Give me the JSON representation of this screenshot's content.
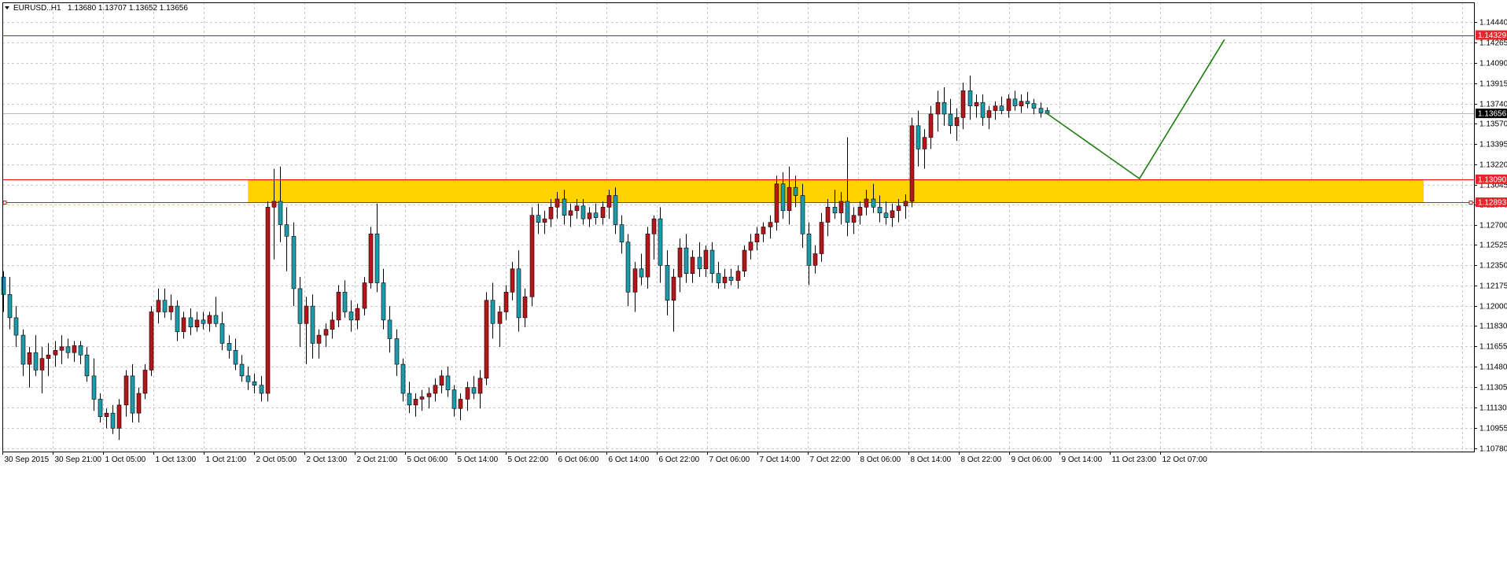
{
  "header": {
    "symbol": "EURUSD..H1",
    "ohlc": "1.13680 1.13707 1.13652 1.13656"
  },
  "colors": {
    "background": "#ffffff",
    "grid": "#c8c8c8",
    "bull": "#b5161b",
    "bear": "#1d9bab",
    "wick": "#000000",
    "zone": "#ffd200",
    "level_line": "#ff0000",
    "level_tag": "#e8252b",
    "current_tag": "#000000",
    "projection": "#1e7d12",
    "axis": "#000000"
  },
  "chart_data": {
    "type": "candlestick",
    "title": "EURUSD..H1",
    "ylim": [
      1.1075,
      1.1461
    ],
    "y_ticks": [
      "1.14440",
      "1.14265",
      "1.14090",
      "1.13915",
      "1.13740",
      "1.13570",
      "1.13395",
      "1.13220",
      "1.13045",
      "1.12870",
      "1.12700",
      "1.12525",
      "1.12350",
      "1.12175",
      "1.12000",
      "1.11830",
      "1.11655",
      "1.11480",
      "1.11305",
      "1.11130",
      "1.10955",
      "1.10780"
    ],
    "x_ticks": [
      "30 Sep 2015",
      "30 Sep 21:00",
      "1 Oct 05:00",
      "1 Oct 13:00",
      "1 Oct 21:00",
      "2 Oct 05:00",
      "2 Oct 13:00",
      "2 Oct 21:00",
      "5 Oct 06:00",
      "5 Oct 14:00",
      "5 Oct 22:00",
      "6 Oct 06:00",
      "6 Oct 14:00",
      "6 Oct 22:00",
      "7 Oct 06:00",
      "7 Oct 14:00",
      "7 Oct 22:00",
      "8 Oct 06:00",
      "8 Oct 14:00",
      "8 Oct 22:00",
      "9 Oct 06:00",
      "9 Oct 14:00",
      "11 Oct 23:00",
      "12 Oct 07:00"
    ],
    "levels": [
      {
        "label": "1.14329",
        "value": 1.14329
      },
      {
        "label": "1.13090",
        "value": 1.1309
      },
      {
        "label": "1.12893",
        "value": 1.12893
      }
    ],
    "current_price": {
      "label": "1.13656",
      "value": 1.13656
    },
    "zone": {
      "low": 1.12893,
      "high": 1.1309
    },
    "candles": [
      [
        1.1225,
        1.123,
        1.1195,
        1.121
      ],
      [
        1.121,
        1.1225,
        1.118,
        1.119
      ],
      [
        1.119,
        1.12,
        1.1165,
        1.1175
      ],
      [
        1.1175,
        1.118,
        1.114,
        1.115
      ],
      [
        1.115,
        1.1165,
        1.113,
        1.116
      ],
      [
        1.116,
        1.1175,
        1.114,
        1.1145
      ],
      [
        1.1145,
        1.1165,
        1.1125,
        1.1155
      ],
      [
        1.1155,
        1.1168,
        1.114,
        1.1158
      ],
      [
        1.1158,
        1.117,
        1.1148,
        1.1162
      ],
      [
        1.1162,
        1.1175,
        1.115,
        1.1165
      ],
      [
        1.1165,
        1.1172,
        1.1155,
        1.116
      ],
      [
        1.116,
        1.117,
        1.1152,
        1.1166
      ],
      [
        1.1166,
        1.117,
        1.115,
        1.1158
      ],
      [
        1.1158,
        1.1165,
        1.1135,
        1.114
      ],
      [
        1.114,
        1.1155,
        1.111,
        1.112
      ],
      [
        1.112,
        1.1125,
        1.11,
        1.1105
      ],
      [
        1.1105,
        1.1112,
        1.1095,
        1.1108
      ],
      [
        1.1108,
        1.1115,
        1.109,
        1.1095
      ],
      [
        1.1095,
        1.112,
        1.1085,
        1.1115
      ],
      [
        1.1115,
        1.1145,
        1.1105,
        1.114
      ],
      [
        1.114,
        1.115,
        1.11,
        1.1108
      ],
      [
        1.1108,
        1.113,
        1.11,
        1.1125
      ],
      [
        1.1125,
        1.115,
        1.112,
        1.1145
      ],
      [
        1.1145,
        1.12,
        1.114,
        1.1195
      ],
      [
        1.1195,
        1.1215,
        1.1185,
        1.1205
      ],
      [
        1.1205,
        1.1215,
        1.119,
        1.1195
      ],
      [
        1.1195,
        1.121,
        1.1188,
        1.12
      ],
      [
        1.12,
        1.1205,
        1.117,
        1.1178
      ],
      [
        1.1178,
        1.1195,
        1.1172,
        1.119
      ],
      [
        1.119,
        1.1198,
        1.1175,
        1.1182
      ],
      [
        1.1182,
        1.1195,
        1.1178,
        1.1188
      ],
      [
        1.1188,
        1.1195,
        1.118,
        1.1185
      ],
      [
        1.1185,
        1.1195,
        1.1178,
        1.1192
      ],
      [
        1.1192,
        1.1208,
        1.1182,
        1.1185
      ],
      [
        1.1185,
        1.1195,
        1.1162,
        1.1168
      ],
      [
        1.1168,
        1.1175,
        1.1155,
        1.1162
      ],
      [
        1.1162,
        1.1172,
        1.1145,
        1.115
      ],
      [
        1.115,
        1.1158,
        1.1135,
        1.114
      ],
      [
        1.114,
        1.1148,
        1.1128,
        1.1135
      ],
      [
        1.1135,
        1.1142,
        1.1125,
        1.1132
      ],
      [
        1.1132,
        1.114,
        1.1118,
        1.1125
      ],
      [
        1.1125,
        1.129,
        1.1118,
        1.1285
      ],
      [
        1.1285,
        1.1318,
        1.124,
        1.129
      ],
      [
        1.129,
        1.132,
        1.1255,
        1.127
      ],
      [
        1.127,
        1.1285,
        1.123,
        1.126
      ],
      [
        1.126,
        1.1272,
        1.12,
        1.1215
      ],
      [
        1.1215,
        1.1225,
        1.1165,
        1.1185
      ],
      [
        1.1185,
        1.1208,
        1.115,
        1.12
      ],
      [
        1.12,
        1.121,
        1.1155,
        1.1168
      ],
      [
        1.1168,
        1.118,
        1.1155,
        1.1175
      ],
      [
        1.1175,
        1.1185,
        1.1165,
        1.118
      ],
      [
        1.118,
        1.1195,
        1.1172,
        1.1188
      ],
      [
        1.1188,
        1.1218,
        1.1182,
        1.1212
      ],
      [
        1.1212,
        1.1222,
        1.119,
        1.1195
      ],
      [
        1.1195,
        1.1205,
        1.1178,
        1.1188
      ],
      [
        1.1188,
        1.1202,
        1.118,
        1.1198
      ],
      [
        1.1198,
        1.1225,
        1.1192,
        1.122
      ],
      [
        1.122,
        1.1268,
        1.1215,
        1.1262
      ],
      [
        1.1262,
        1.1288,
        1.1212,
        1.122
      ],
      [
        1.122,
        1.1232,
        1.118,
        1.1188
      ],
      [
        1.1188,
        1.12,
        1.116,
        1.1172
      ],
      [
        1.1172,
        1.118,
        1.114,
        1.115
      ],
      [
        1.115,
        1.1155,
        1.1118,
        1.1125
      ],
      [
        1.1125,
        1.1135,
        1.1108,
        1.1115
      ],
      [
        1.1115,
        1.1125,
        1.1105,
        1.112
      ],
      [
        1.112,
        1.1128,
        1.111,
        1.1122
      ],
      [
        1.1122,
        1.113,
        1.1112,
        1.1125
      ],
      [
        1.1125,
        1.1138,
        1.1118,
        1.1132
      ],
      [
        1.1132,
        1.1145,
        1.1125,
        1.114
      ],
      [
        1.114,
        1.1148,
        1.1122,
        1.1128
      ],
      [
        1.1128,
        1.1132,
        1.1105,
        1.1112
      ],
      [
        1.1112,
        1.1125,
        1.1102,
        1.112
      ],
      [
        1.112,
        1.1135,
        1.111,
        1.113
      ],
      [
        1.113,
        1.114,
        1.112,
        1.1125
      ],
      [
        1.1125,
        1.1145,
        1.1112,
        1.1138
      ],
      [
        1.1138,
        1.1212,
        1.1132,
        1.1205
      ],
      [
        1.1205,
        1.122,
        1.1172,
        1.1185
      ],
      [
        1.1185,
        1.12,
        1.1165,
        1.1195
      ],
      [
        1.1195,
        1.1218,
        1.1188,
        1.1212
      ],
      [
        1.1212,
        1.1238,
        1.1205,
        1.1232
      ],
      [
        1.1232,
        1.1248,
        1.1178,
        1.119
      ],
      [
        1.119,
        1.1215,
        1.1182,
        1.1208
      ],
      [
        1.1208,
        1.1285,
        1.12,
        1.1278
      ],
      [
        1.1278,
        1.1288,
        1.1262,
        1.1272
      ],
      [
        1.1272,
        1.1282,
        1.1262,
        1.1275
      ],
      [
        1.1275,
        1.1292,
        1.1268,
        1.1285
      ],
      [
        1.1285,
        1.1298,
        1.1275,
        1.1292
      ],
      [
        1.1292,
        1.13,
        1.127,
        1.1278
      ],
      [
        1.1278,
        1.1288,
        1.1268,
        1.1282
      ],
      [
        1.1282,
        1.1292,
        1.1275,
        1.1286
      ],
      [
        1.1286,
        1.1292,
        1.127,
        1.1275
      ],
      [
        1.1275,
        1.1285,
        1.1268,
        1.128
      ],
      [
        1.128,
        1.1288,
        1.127,
        1.1276
      ],
      [
        1.1276,
        1.129,
        1.127,
        1.1285
      ],
      [
        1.1285,
        1.13,
        1.1275,
        1.1295
      ],
      [
        1.1295,
        1.1302,
        1.1262,
        1.127
      ],
      [
        1.127,
        1.1278,
        1.1245,
        1.1255
      ],
      [
        1.1255,
        1.1262,
        1.12,
        1.1212
      ],
      [
        1.1212,
        1.1238,
        1.1195,
        1.1232
      ],
      [
        1.1232,
        1.1245,
        1.1218,
        1.1225
      ],
      [
        1.1225,
        1.1268,
        1.1215,
        1.1262
      ],
      [
        1.1262,
        1.1278,
        1.124,
        1.1275
      ],
      [
        1.1275,
        1.1285,
        1.122,
        1.1235
      ],
      [
        1.1235,
        1.1248,
        1.1192,
        1.1205
      ],
      [
        1.1205,
        1.1232,
        1.1178,
        1.1225
      ],
      [
        1.1225,
        1.1258,
        1.1212,
        1.125
      ],
      [
        1.125,
        1.1262,
        1.122,
        1.1228
      ],
      [
        1.1228,
        1.1248,
        1.122,
        1.1242
      ],
      [
        1.1242,
        1.1255,
        1.1225,
        1.1232
      ],
      [
        1.1232,
        1.1252,
        1.1225,
        1.1248
      ],
      [
        1.1248,
        1.1255,
        1.122,
        1.1228
      ],
      [
        1.1228,
        1.1238,
        1.1215,
        1.122
      ],
      [
        1.122,
        1.1232,
        1.1215,
        1.1225
      ],
      [
        1.1225,
        1.1232,
        1.1218,
        1.1222
      ],
      [
        1.1222,
        1.1235,
        1.1215,
        1.123
      ],
      [
        1.123,
        1.1252,
        1.1225,
        1.1248
      ],
      [
        1.1248,
        1.1262,
        1.124,
        1.1255
      ],
      [
        1.1255,
        1.1268,
        1.1248,
        1.1262
      ],
      [
        1.1262,
        1.1272,
        1.1255,
        1.1268
      ],
      [
        1.1268,
        1.1278,
        1.1258,
        1.1272
      ],
      [
        1.1272,
        1.1312,
        1.1265,
        1.1305
      ],
      [
        1.1305,
        1.1315,
        1.1275,
        1.1282
      ],
      [
        1.1282,
        1.132,
        1.127,
        1.1302
      ],
      [
        1.1302,
        1.1312,
        1.1285,
        1.1295
      ],
      [
        1.1295,
        1.1305,
        1.125,
        1.1262
      ],
      [
        1.1262,
        1.1272,
        1.1218,
        1.1235
      ],
      [
        1.1235,
        1.1252,
        1.1228,
        1.1245
      ],
      [
        1.1245,
        1.128,
        1.1238,
        1.1272
      ],
      [
        1.1272,
        1.1292,
        1.126,
        1.1285
      ],
      [
        1.1285,
        1.13,
        1.1275,
        1.128
      ],
      [
        1.128,
        1.1298,
        1.127,
        1.129
      ],
      [
        1.129,
        1.1345,
        1.126,
        1.1272
      ],
      [
        1.1272,
        1.1285,
        1.1262,
        1.1278
      ],
      [
        1.1278,
        1.129,
        1.127,
        1.1285
      ],
      [
        1.1285,
        1.13,
        1.1278,
        1.1292
      ],
      [
        1.1292,
        1.1305,
        1.128,
        1.1285
      ],
      [
        1.1285,
        1.1295,
        1.1272,
        1.128
      ],
      [
        1.128,
        1.129,
        1.127,
        1.1276
      ],
      [
        1.1276,
        1.1288,
        1.1268,
        1.1282
      ],
      [
        1.1282,
        1.1292,
        1.1272,
        1.1286
      ],
      [
        1.1286,
        1.1296,
        1.1275,
        1.129
      ],
      [
        1.129,
        1.1362,
        1.1285,
        1.1355
      ],
      [
        1.1355,
        1.1368,
        1.132,
        1.1335
      ],
      [
        1.1335,
        1.1352,
        1.1318,
        1.1345
      ],
      [
        1.1345,
        1.1372,
        1.1335,
        1.1365
      ],
      [
        1.1365,
        1.1385,
        1.135,
        1.1375
      ],
      [
        1.1375,
        1.1388,
        1.1355,
        1.1365
      ],
      [
        1.1365,
        1.1378,
        1.1348,
        1.1355
      ],
      [
        1.1355,
        1.137,
        1.1342,
        1.1362
      ],
      [
        1.1362,
        1.1392,
        1.1352,
        1.1385
      ],
      [
        1.1385,
        1.1398,
        1.136,
        1.1372
      ],
      [
        1.1372,
        1.1382,
        1.1362,
        1.1375
      ],
      [
        1.1375,
        1.1382,
        1.1355,
        1.1362
      ],
      [
        1.1362,
        1.1372,
        1.1352,
        1.1368
      ],
      [
        1.1368,
        1.1376,
        1.136,
        1.1372
      ],
      [
        1.1372,
        1.138,
        1.1365,
        1.1368
      ],
      [
        1.1368,
        1.1382,
        1.1362,
        1.1378
      ],
      [
        1.1378,
        1.1385,
        1.1368,
        1.1372
      ],
      [
        1.1372,
        1.1382,
        1.1366,
        1.1376
      ],
      [
        1.1376,
        1.1384,
        1.137,
        1.1374
      ],
      [
        1.1374,
        1.1378,
        1.1365,
        1.137
      ],
      [
        1.137,
        1.1375,
        1.1362,
        1.1366
      ],
      [
        1.1368,
        1.13707,
        1.13652,
        1.13656
      ]
    ],
    "projection": [
      {
        "bar": 0,
        "value": 1.13656
      },
      {
        "bar": 12,
        "value": 1.13095
      },
      {
        "bar": 23,
        "value": 1.1429
      }
    ]
  }
}
